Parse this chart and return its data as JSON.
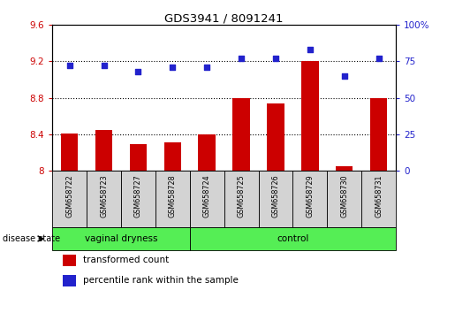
{
  "title": "GDS3941 / 8091241",
  "samples": [
    "GSM658722",
    "GSM658723",
    "GSM658727",
    "GSM658728",
    "GSM658724",
    "GSM658725",
    "GSM658726",
    "GSM658729",
    "GSM658730",
    "GSM658731"
  ],
  "bar_values": [
    8.41,
    8.45,
    8.29,
    8.31,
    8.4,
    8.8,
    8.74,
    9.2,
    8.05,
    8.8
  ],
  "dot_values": [
    72,
    72,
    68,
    71,
    71,
    77,
    77,
    83,
    65,
    77
  ],
  "ylim_left": [
    8.0,
    9.6
  ],
  "ylim_right": [
    0,
    100
  ],
  "yticks_left": [
    8.0,
    8.4,
    8.8,
    9.2,
    9.6
  ],
  "ytick_labels_left": [
    "8",
    "8.4",
    "8.8",
    "9.2",
    "9.6"
  ],
  "yticks_right": [
    0,
    25,
    50,
    75,
    100
  ],
  "ytick_labels_right": [
    "0",
    "25",
    "50",
    "75",
    "100%"
  ],
  "group_labels": [
    "vaginal dryness",
    "control"
  ],
  "group_ranges": [
    [
      0,
      4
    ],
    [
      4,
      10
    ]
  ],
  "bar_color": "#CC0000",
  "dot_color": "#2222CC",
  "bar_width": 0.5,
  "grid_dotted_at": [
    8.4,
    8.8,
    9.2
  ],
  "disease_state_label": "disease state",
  "legend_entries": [
    "transformed count",
    "percentile rank within the sample"
  ],
  "bg_color_sample_labels": "#d3d3d3",
  "green_light": "#90EE90",
  "green_dark": "#44DD44"
}
